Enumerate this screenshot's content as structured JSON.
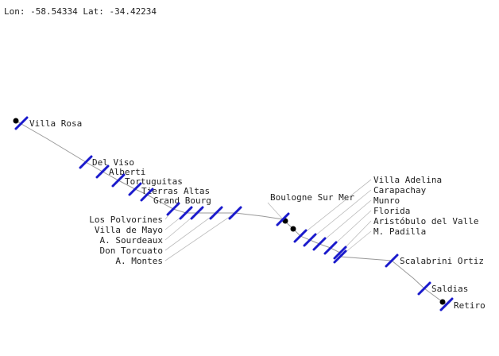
{
  "coords_readout": "Lon: -58.54334 Lat: -34.42234",
  "colors": {
    "route": "#999999",
    "station_marker": "#1a1acc",
    "endpoint": "#000000"
  },
  "stations": [
    {
      "name": "Villa Rosa"
    },
    {
      "name": "Del Viso"
    },
    {
      "name": "Alberti"
    },
    {
      "name": "Tortuguitas"
    },
    {
      "name": "Tierras Altas"
    },
    {
      "name": "Grand Bourg"
    },
    {
      "name": "Los Polvorines"
    },
    {
      "name": "Villa de Mayo"
    },
    {
      "name": "A. Sourdeaux"
    },
    {
      "name": "Don Torcuato"
    },
    {
      "name": "A. Montes"
    },
    {
      "name": "Boulogne Sur Mer"
    },
    {
      "name": "Villa Adelina"
    },
    {
      "name": "Carapachay"
    },
    {
      "name": "Munro"
    },
    {
      "name": "Florida"
    },
    {
      "name": "Aristóbulo del Valle"
    },
    {
      "name": "M. Padilla"
    },
    {
      "name": "Scalabrini Ortiz"
    },
    {
      "name": "Saldias"
    },
    {
      "name": "Retiro"
    }
  ]
}
